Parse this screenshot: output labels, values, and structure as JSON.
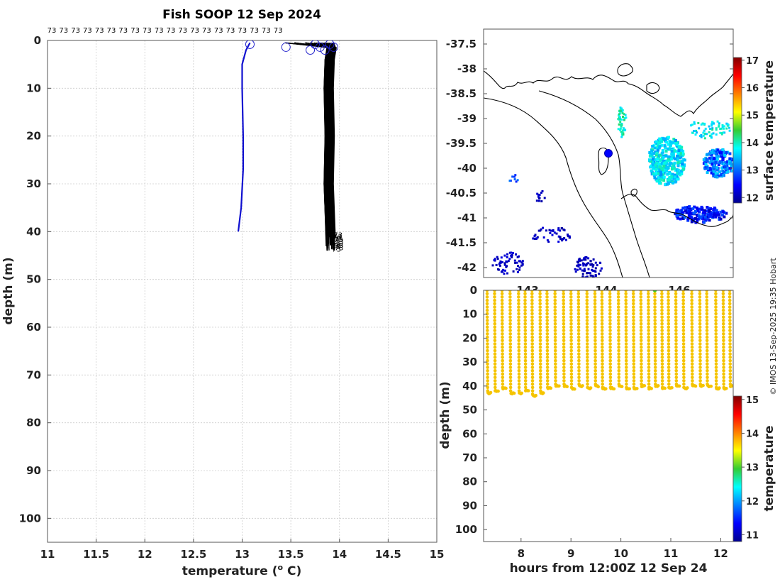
{
  "figure": {
    "title": "Fish SOOP 12 Sep 2024",
    "credit": "© IMOS 13-Sep-2025 19:35 Hobart"
  },
  "chart_data": [
    {
      "id": "profile",
      "type": "line",
      "xlabel": "temperature (° C)",
      "xlabel_main": "temperature (",
      "xlabel_sup": "o",
      "xlabel_tail": " C)",
      "ylabel": "depth (m)",
      "xlim": [
        11,
        15
      ],
      "ylim": [
        105,
        0
      ],
      "xticks": [
        "11",
        "11.5",
        "12",
        "12.5",
        "13",
        "13.5",
        "14",
        "14.5",
        "15"
      ],
      "xtick_values": [
        11,
        11.5,
        12,
        12.5,
        13,
        13.5,
        14,
        14.5,
        15
      ],
      "yticks": [
        "0",
        "10",
        "20",
        "30",
        "40",
        "50",
        "60",
        "70",
        "80",
        "90",
        "100"
      ],
      "ytick_values": [
        0,
        10,
        20,
        30,
        40,
        50,
        60,
        70,
        80,
        90,
        100
      ],
      "top_label": "73",
      "top_label_count": 20,
      "bottom_label": "73",
      "series": [
        {
          "name": "first profile",
          "color": "#1010d0",
          "temp": [
            13.08,
            13.04,
            13.0,
            13.0,
            13.01,
            13.01,
            12.99,
            12.96
          ],
          "depth": [
            0.5,
            2,
            5,
            10,
            20,
            27,
            35,
            40
          ]
        },
        {
          "name": "other profiles",
          "color": "#000000",
          "surface_temps": [
            13.45,
            13.55,
            13.65,
            13.7,
            13.75,
            13.78,
            13.8,
            13.82,
            13.84,
            13.86,
            13.88,
            13.9,
            13.92,
            13.94
          ],
          "core_temp_range": [
            13.85,
            13.95
          ],
          "bottom_depth_range": [
            40,
            44
          ]
        }
      ],
      "markers": [
        13.08,
        13.45,
        13.7,
        13.75,
        13.8,
        13.85,
        13.9,
        13.94
      ]
    },
    {
      "id": "map",
      "type": "heatmap",
      "yticks": [
        "-37.5",
        "-38",
        "-38.5",
        "-39",
        "-39.5",
        "-40",
        "-40.5",
        "-41",
        "-41.5",
        "-42"
      ],
      "ytick_values": [
        -37.5,
        -38,
        -38.5,
        -39,
        -39.5,
        -40,
        -40.5,
        -41,
        -41.5,
        -42
      ],
      "ylim": [
        -42.2,
        -37.2
      ],
      "xtick_fragments": [
        "143",
        "144",
        "146"
      ],
      "colorbar_label": "surface temperature",
      "colorbar_ticks": [
        "12",
        "13",
        "14",
        "15",
        "16",
        "17"
      ],
      "colorbar_values": [
        12,
        13,
        14,
        15,
        16,
        17
      ],
      "colorbar_range": [
        11.8,
        17.1
      ],
      "vessel_marker": {
        "lat": -39.65,
        "color": "#0000ff"
      }
    },
    {
      "id": "timeseries",
      "type": "scatter",
      "xlabel": "hours from 12:00Z 12 Sep 24",
      "ylabel": "depth (m)",
      "xlim": [
        7.25,
        12.25
      ],
      "ylim": [
        105,
        0
      ],
      "xticks": [
        "8",
        "9",
        "10",
        "11",
        "12"
      ],
      "xtick_values": [
        8,
        9,
        10,
        11,
        12
      ],
      "yticks": [
        "0",
        "10",
        "20",
        "30",
        "40",
        "50",
        "60",
        "70",
        "80",
        "90",
        "100"
      ],
      "ytick_values": [
        0,
        10,
        20,
        30,
        40,
        50,
        60,
        70,
        80,
        90,
        100
      ],
      "colorbar_label": "temperature",
      "colorbar_ticks": [
        "11",
        "12",
        "13",
        "14",
        "15"
      ],
      "colorbar_values": [
        11,
        12,
        13,
        14,
        15
      ],
      "colorbar_range": [
        10.8,
        15.1
      ],
      "point_color": "#f5c400",
      "casts": [
        7.32,
        7.47,
        7.62,
        7.78,
        7.95,
        8.08,
        8.22,
        8.38,
        8.52,
        8.68,
        8.85,
        9.0,
        9.15,
        9.32,
        9.48,
        9.62,
        9.78,
        9.95,
        10.1,
        10.25,
        10.4,
        10.55,
        10.68,
        10.82,
        10.95,
        11.1,
        11.25,
        11.42,
        11.58,
        11.72,
        11.9,
        12.05,
        12.18
      ],
      "cast_max_depth": [
        43,
        42,
        41,
        43,
        43,
        42,
        44,
        43,
        41,
        40,
        40,
        41,
        40,
        41,
        40,
        41,
        41,
        40,
        41,
        41,
        40,
        41,
        40,
        41,
        41,
        40,
        41,
        40,
        40,
        40,
        41,
        41,
        40
      ],
      "highlight_point": {
        "hour": 10.68,
        "depth": 0,
        "color": "#44cc22"
      }
    }
  ]
}
